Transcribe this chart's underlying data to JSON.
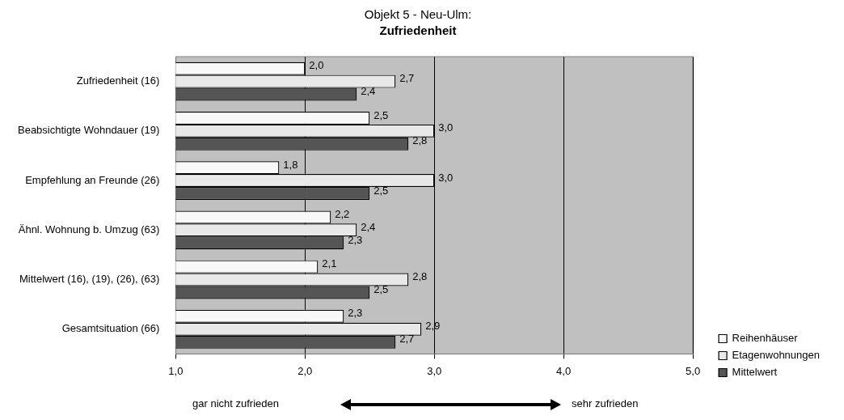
{
  "chart_data": {
    "type": "bar",
    "orientation": "horizontal",
    "title": "Objekt 5 - Neu-Ulm:",
    "subtitle": "Zufriedenheit",
    "categories": [
      "Zufriedenheit (16)",
      "Beabsichtigte Wohndauer (19)",
      "Empfehlung an Freunde (26)",
      "Ähnl. Wohnung b. Umzug (63)",
      "Mittelwert (16), (19), (26), (63)",
      "Gesamtsituation (66)"
    ],
    "series": [
      {
        "name": "Reihenhäuser",
        "color": "#f8f8f8",
        "values": [
          2.0,
          2.5,
          1.8,
          2.2,
          2.1,
          2.3
        ],
        "value_labels": [
          "2,0",
          "2,5",
          "1,8",
          "2,2",
          "2,1",
          "2,3"
        ]
      },
      {
        "name": "Etagenwohnungen",
        "color": "#e8e8e8",
        "values": [
          2.7,
          3.0,
          3.0,
          2.4,
          2.8,
          2.9
        ],
        "value_labels": [
          "2,7",
          "3,0",
          "3,0",
          "2,4",
          "2,8",
          "2,9"
        ]
      },
      {
        "name": "Mittelwert",
        "color": "#555555",
        "values": [
          2.4,
          2.8,
          2.5,
          2.3,
          2.5,
          2.7
        ],
        "value_labels": [
          "2,4",
          "2,8",
          "2,5",
          "2,3",
          "2,5",
          "2,7"
        ]
      }
    ],
    "xlim": [
      1,
      5
    ],
    "xticks": [
      {
        "value": 1,
        "label": "1,0"
      },
      {
        "value": 2,
        "label": "2,0"
      },
      {
        "value": 3,
        "label": "3,0"
      },
      {
        "value": 4,
        "label": "4,0"
      },
      {
        "value": 5,
        "label": "5,0"
      }
    ],
    "grid": "x",
    "legend": "right",
    "annotations": [
      "gar nicht zufrieden",
      "sehr zufrieden"
    ]
  }
}
